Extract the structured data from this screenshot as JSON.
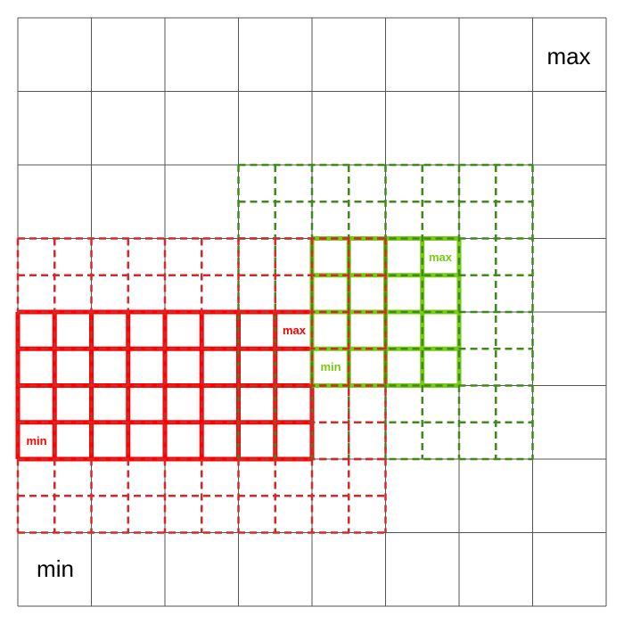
{
  "outer": {
    "max_label": "max",
    "min_label": "min",
    "line_color": "#555555",
    "cells": 8
  },
  "regions": [
    {
      "name": "red",
      "solid_color": "#ff0000",
      "dashed_color": "#d22a2a",
      "max_label": "max",
      "min_label": "min"
    },
    {
      "name": "green",
      "solid_color": "#77cc11",
      "dashed_color": "#3f8a1a",
      "max_label": "max",
      "min_label": "min"
    }
  ]
}
